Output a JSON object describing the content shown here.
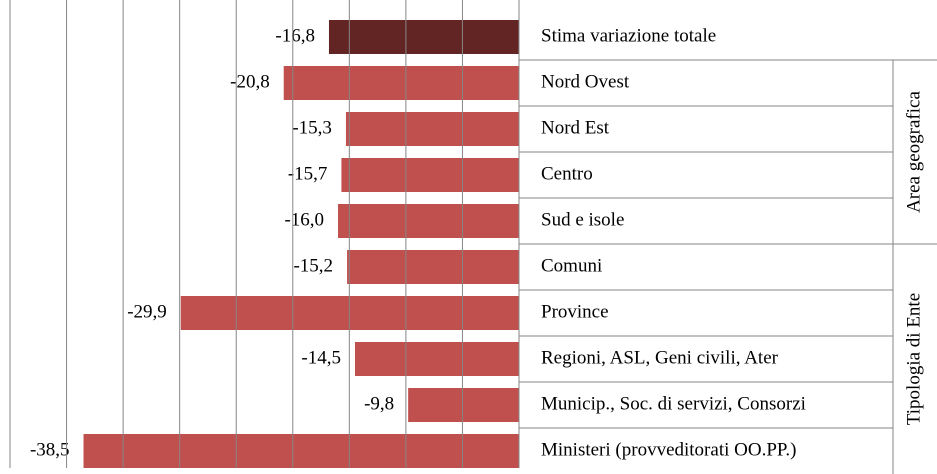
{
  "chart_data": {
    "type": "barh",
    "categories": [
      "Stima variazione totale",
      "Nord Ovest",
      "Nord Est",
      "Centro",
      "Sud e isole",
      "Comuni",
      "Province",
      "Regioni, ASL, Geni civili, Ater",
      "Municip., Soc. di servizi, Consorzi",
      "Ministeri (provveditorati OO.PP.)"
    ],
    "values": [
      -16.8,
      -20.8,
      -15.3,
      -15.7,
      -16.0,
      -15.2,
      -29.9,
      -14.5,
      -9.8,
      -38.5
    ],
    "value_labels": [
      "-16,8",
      "-20,8",
      "-15,3",
      "-15,7",
      "-16,0",
      "-15,2",
      "-29,9",
      "-14,5",
      "-9,8",
      "-38,5"
    ],
    "colors": [
      "#632523",
      "#c0504d",
      "#c0504d",
      "#c0504d",
      "#c0504d",
      "#c0504d",
      "#c0504d",
      "#c0504d",
      "#c0504d",
      "#c0504d"
    ],
    "group_labels": [
      "Area geografica",
      "Tipologia di Ente"
    ],
    "xlim": [
      -45,
      0
    ],
    "xticks": [
      -45,
      -40,
      -35,
      -30,
      -25,
      -20,
      -15,
      -10,
      -5,
      0
    ],
    "grid": true
  }
}
